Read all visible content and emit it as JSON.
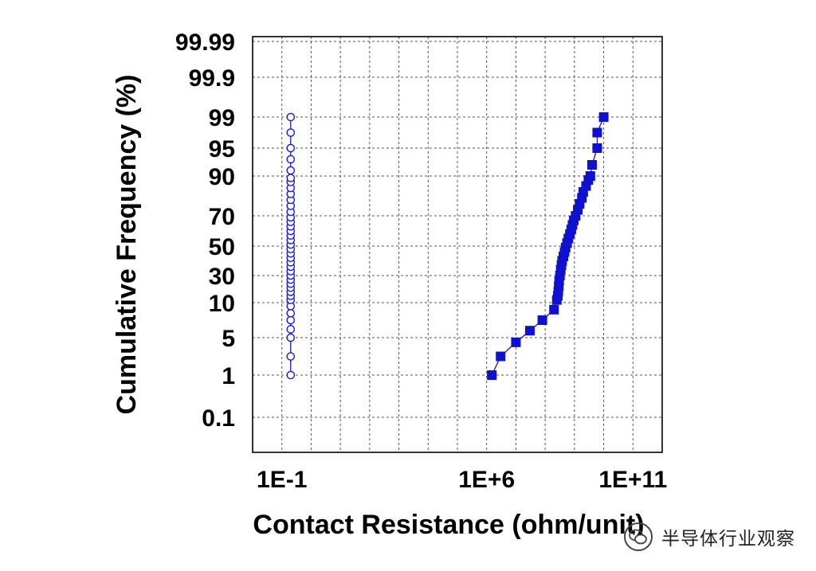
{
  "chart_data": {
    "type": "scatter",
    "title": "",
    "xlabel": "Contact Resistance (ohm/unit)",
    "ylabel": "Cumulative Frequency (%)",
    "x_scale": "log",
    "y_scale": "probability",
    "xlim": [
      0.01,
      1000000000000.0
    ],
    "x_ticks": [
      {
        "value": 0.1,
        "label": "1E-1"
      },
      {
        "value": 1000000,
        "label": "1E+6"
      },
      {
        "value": 100000000000,
        "label": "1E+11"
      }
    ],
    "y_ticks": [
      {
        "value": 0.1,
        "label": "0.1"
      },
      {
        "value": 1,
        "label": "1"
      },
      {
        "value": 5,
        "label": "5"
      },
      {
        "value": 10,
        "label": "10"
      },
      {
        "value": 30,
        "label": "30"
      },
      {
        "value": 50,
        "label": "50"
      },
      {
        "value": 70,
        "label": "70"
      },
      {
        "value": 90,
        "label": "90"
      },
      {
        "value": 95,
        "label": "95"
      },
      {
        "value": 99,
        "label": "99"
      },
      {
        "value": 99.9,
        "label": "99.9"
      },
      {
        "value": 99.99,
        "label": "99.99"
      }
    ],
    "grid": true,
    "legend": "none",
    "series": [
      {
        "marker": "open-circle",
        "color": "#1a1ad8",
        "points": [
          [
            0.2,
            1
          ],
          [
            0.2,
            3
          ],
          [
            0.2,
            5
          ],
          [
            0.2,
            6.2
          ],
          [
            0.2,
            7.5
          ],
          [
            0.2,
            8.5
          ],
          [
            0.2,
            9.5
          ],
          [
            0.2,
            12
          ],
          [
            0.2,
            15
          ],
          [
            0.2,
            18
          ],
          [
            0.2,
            21
          ],
          [
            0.2,
            24
          ],
          [
            0.2,
            27
          ],
          [
            0.2,
            30
          ],
          [
            0.2,
            33
          ],
          [
            0.2,
            36
          ],
          [
            0.2,
            39
          ],
          [
            0.2,
            42
          ],
          [
            0.2,
            45
          ],
          [
            0.2,
            48
          ],
          [
            0.2,
            51
          ],
          [
            0.2,
            54
          ],
          [
            0.2,
            57
          ],
          [
            0.2,
            60
          ],
          [
            0.2,
            63
          ],
          [
            0.2,
            66
          ],
          [
            0.2,
            69
          ],
          [
            0.2,
            72
          ],
          [
            0.2,
            75
          ],
          [
            0.2,
            78
          ],
          [
            0.2,
            81
          ],
          [
            0.2,
            84
          ],
          [
            0.2,
            87
          ],
          [
            0.2,
            89
          ],
          [
            0.2,
            91
          ],
          [
            0.2,
            93
          ],
          [
            0.2,
            95
          ],
          [
            0.2,
            97
          ],
          [
            0.2,
            99
          ]
        ]
      },
      {
        "marker": "filled-square",
        "color": "#1010d0",
        "points": [
          [
            1500000,
            1
          ],
          [
            3000000,
            3
          ],
          [
            10000000,
            4.5
          ],
          [
            30000000,
            6
          ],
          [
            80000000,
            7.5
          ],
          [
            200000000,
            9
          ],
          [
            250000000,
            12
          ],
          [
            270000000,
            15
          ],
          [
            280000000,
            18
          ],
          [
            290000000,
            22
          ],
          [
            300000000,
            26
          ],
          [
            320000000,
            30
          ],
          [
            340000000,
            34
          ],
          [
            360000000,
            37
          ],
          [
            380000000,
            40
          ],
          [
            420000000,
            43
          ],
          [
            460000000,
            46
          ],
          [
            500000000,
            49
          ],
          [
            560000000,
            52
          ],
          [
            620000000,
            55
          ],
          [
            700000000,
            58
          ],
          [
            780000000,
            61
          ],
          [
            860000000,
            64
          ],
          [
            950000000,
            67
          ],
          [
            1100000000,
            70
          ],
          [
            1300000000,
            73
          ],
          [
            1500000000,
            76
          ],
          [
            1800000000,
            79
          ],
          [
            2000000000,
            82
          ],
          [
            2500000000,
            85
          ],
          [
            3000000000,
            88
          ],
          [
            3500000000,
            90
          ],
          [
            4000000000,
            92
          ],
          [
            6000000000,
            95
          ],
          [
            6000000000,
            97
          ],
          [
            10000000000,
            99
          ]
        ]
      }
    ]
  },
  "watermark": {
    "icon": "wechat-icon",
    "text": "半导体行业观察"
  }
}
